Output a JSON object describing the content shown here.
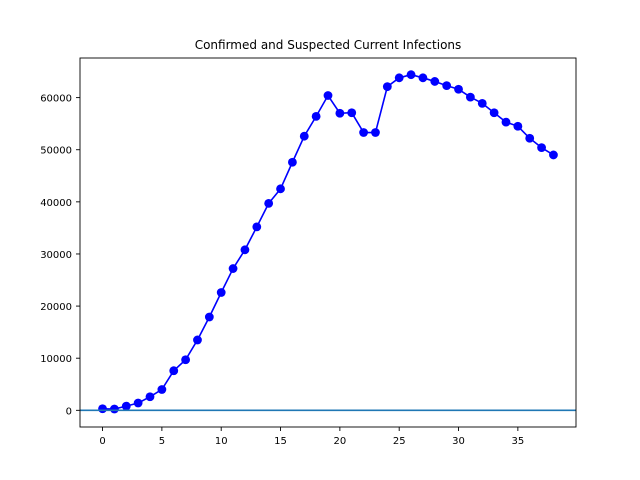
{
  "chart_data": {
    "type": "line",
    "title": "Confirmed and Suspected Current Infections",
    "xlabel": "",
    "ylabel": "",
    "xlim": [
      -1.9,
      39.9
    ],
    "ylim": [
      -3200,
      67600
    ],
    "x_ticks": [
      0,
      5,
      10,
      15,
      20,
      25,
      30,
      35
    ],
    "y_ticks": [
      0,
      10000,
      20000,
      30000,
      40000,
      50000,
      60000
    ],
    "grid": false,
    "legend": "none",
    "series": [
      {
        "color": "#0000ff",
        "marker": "circle",
        "x": [
          0,
          1,
          2,
          3,
          4,
          5,
          6,
          7,
          8,
          9,
          10,
          11,
          12,
          13,
          14,
          15,
          16,
          17,
          18,
          19,
          20,
          21,
          22,
          23,
          24,
          25,
          26,
          27,
          28,
          29,
          30,
          31,
          32,
          33,
          34,
          35,
          36,
          37,
          38
        ],
        "values": [
          300,
          250,
          800,
          1400,
          2600,
          4000,
          7600,
          9700,
          13500,
          17900,
          22600,
          27200,
          30800,
          35200,
          39700,
          42500,
          47600,
          52600,
          56400,
          60400,
          57000,
          57100,
          53300,
          53300,
          62100,
          63800,
          64400,
          63800,
          63100,
          62300,
          61600,
          60100,
          58900,
          57100,
          55300,
          54500,
          52200,
          50400,
          49000
        ]
      },
      {
        "color": "#1f77b4",
        "marker": "none",
        "type": "hline",
        "y": 0
      }
    ]
  }
}
